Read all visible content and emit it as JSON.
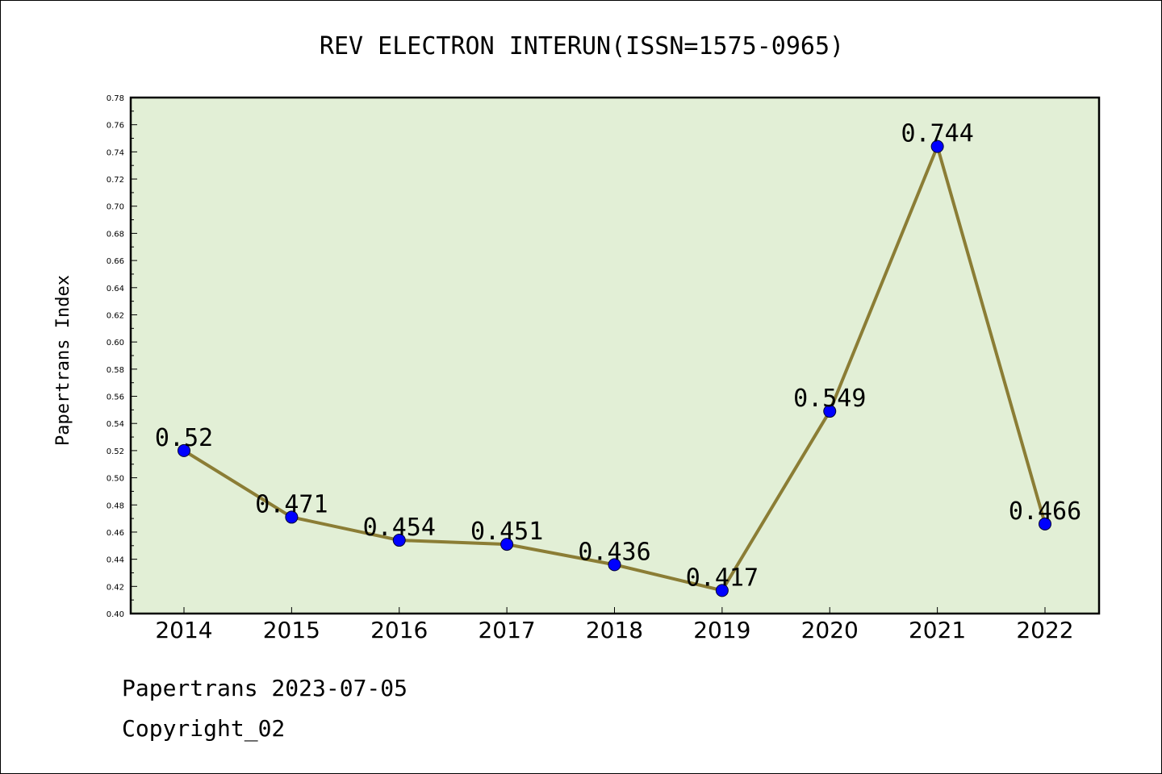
{
  "chart_data": {
    "type": "line",
    "title": "REV ELECTRON INTERUN(ISSN=1575-0965)",
    "ylabel": "Papertrans Index",
    "xlabel": "",
    "categories": [
      "2014",
      "2015",
      "2016",
      "2017",
      "2018",
      "2019",
      "2020",
      "2021",
      "2022"
    ],
    "series": [
      {
        "values": [
          0.52,
          0.471,
          0.454,
          0.451,
          0.436,
          0.417,
          0.549,
          0.744,
          0.466
        ],
        "labels": [
          "0.52",
          "0.471",
          "0.454",
          "0.451",
          "0.436",
          "0.417",
          "0.549",
          "0.744",
          "0.466"
        ]
      }
    ],
    "ylim": [
      0.4,
      0.78
    ],
    "ytick_step": 0.02,
    "ytick_labels": [
      "0.40",
      "0.42",
      "0.44",
      "0.46",
      "0.48",
      "0.50",
      "0.52",
      "0.54",
      "0.56",
      "0.58",
      "0.60",
      "0.62",
      "0.64",
      "0.66",
      "0.68",
      "0.70",
      "0.72",
      "0.74",
      "0.76",
      "0.78"
    ],
    "grid": false,
    "colors": {
      "plot_background": "#e2efd6",
      "line": "#8b7d35",
      "marker": "#0000ff"
    }
  },
  "footer": {
    "date_text": "Papertrans 2023-07-05",
    "copyright_text": "Copyright_02"
  }
}
